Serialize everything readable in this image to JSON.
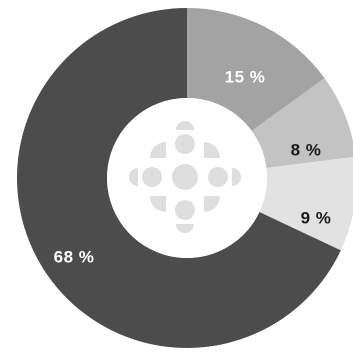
{
  "chart_data": {
    "type": "pie",
    "variant": "donut",
    "title": "",
    "slices": [
      {
        "value": 15,
        "label": "15 %",
        "color": "#a3a3a3",
        "label_color": "#ffffff"
      },
      {
        "value": 8,
        "label": "8 %",
        "color": "#c3c3c3",
        "label_color": "#1a1a1a"
      },
      {
        "value": 9,
        "label": "9 %",
        "color": "#e2e2e2",
        "label_color": "#1a1a1a"
      },
      {
        "value": 68,
        "label": "68 %",
        "color": "#4c4c4c",
        "label_color": "#ffffff"
      }
    ],
    "center_logo": {
      "icon": "cbc-radio-canada-logo-icon",
      "color": "#dedede"
    },
    "background": "#ffffff"
  }
}
